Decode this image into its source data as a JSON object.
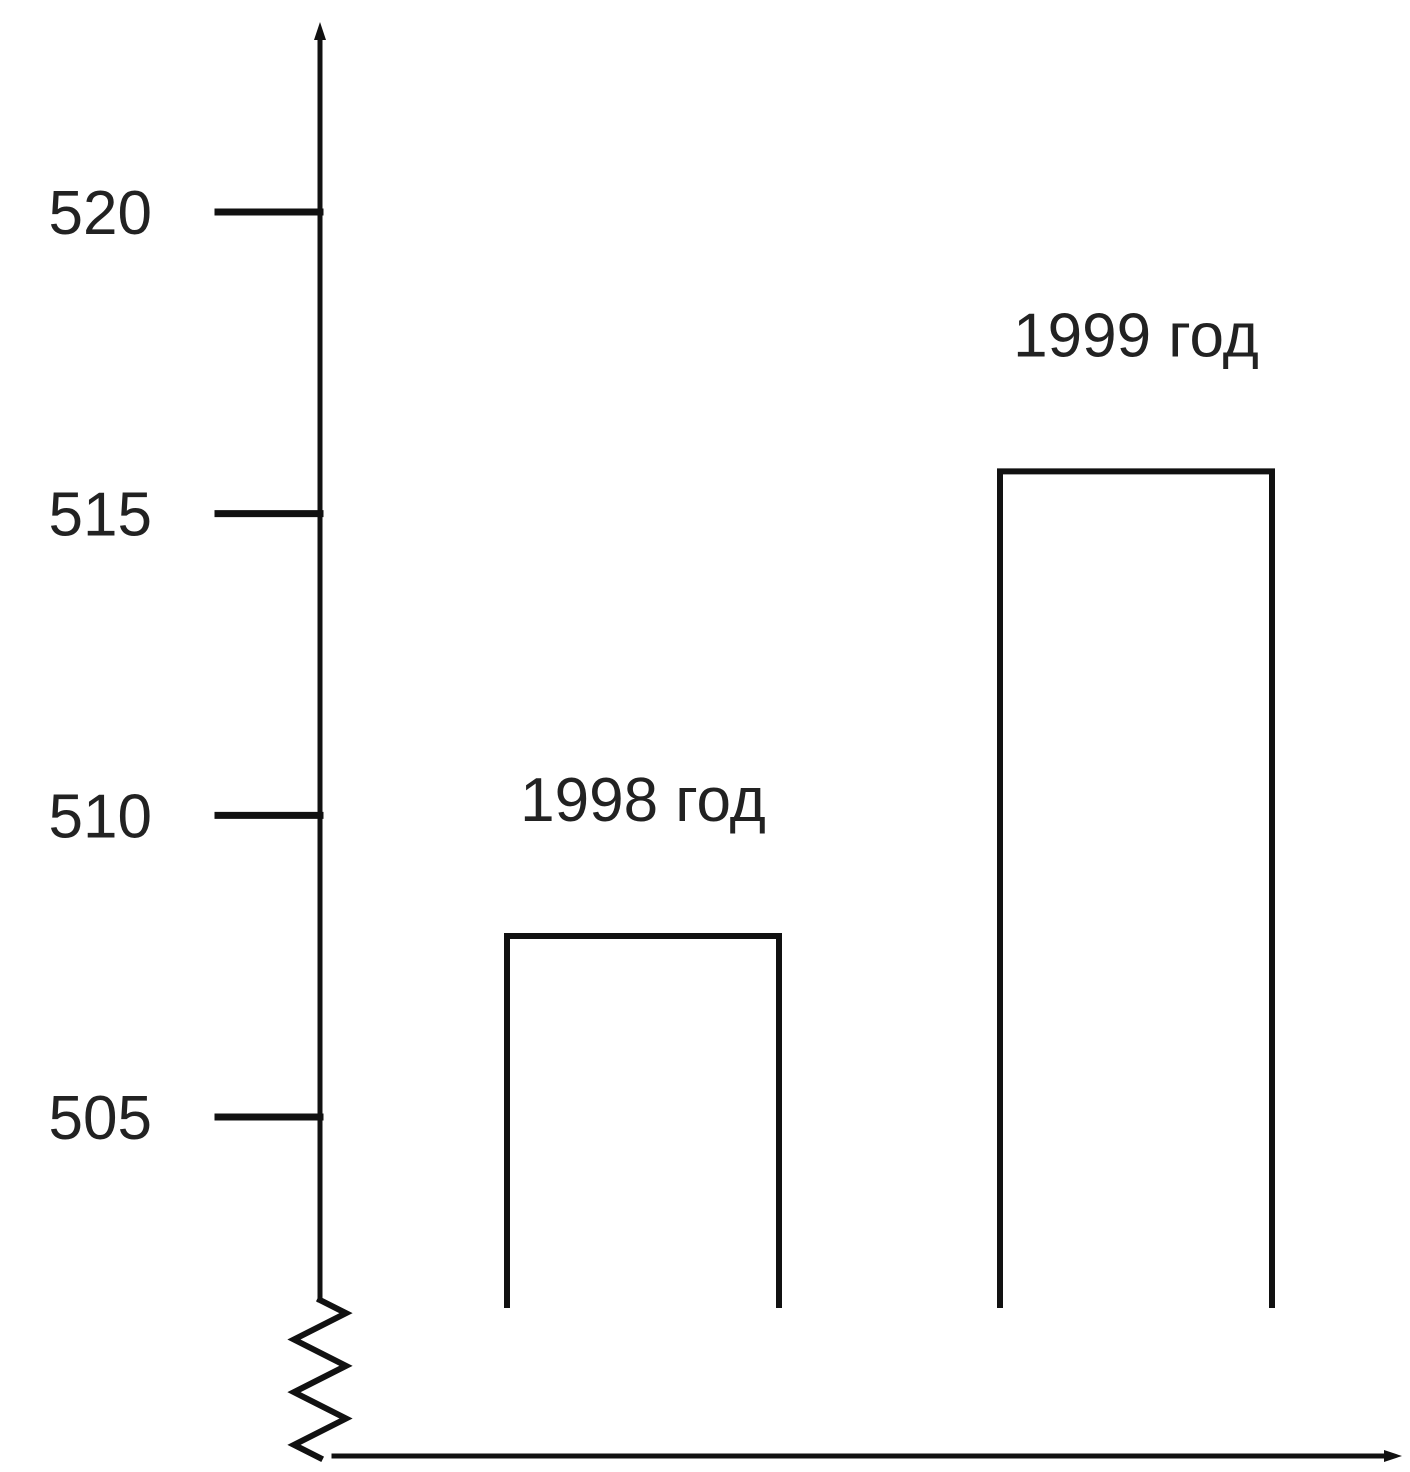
{
  "chart_data": {
    "type": "bar",
    "categories": [
      "1998 год",
      "1999 год"
    ],
    "values": [
      508,
      515.7
    ],
    "yticks": [
      505,
      510,
      515,
      520
    ],
    "ylim": [
      502,
      523
    ],
    "y_axis_break": true,
    "grid": false,
    "bar_style": "outline",
    "colors": {
      "stroke": "#111111",
      "background": "#ffffff",
      "text": "#222222"
    }
  }
}
